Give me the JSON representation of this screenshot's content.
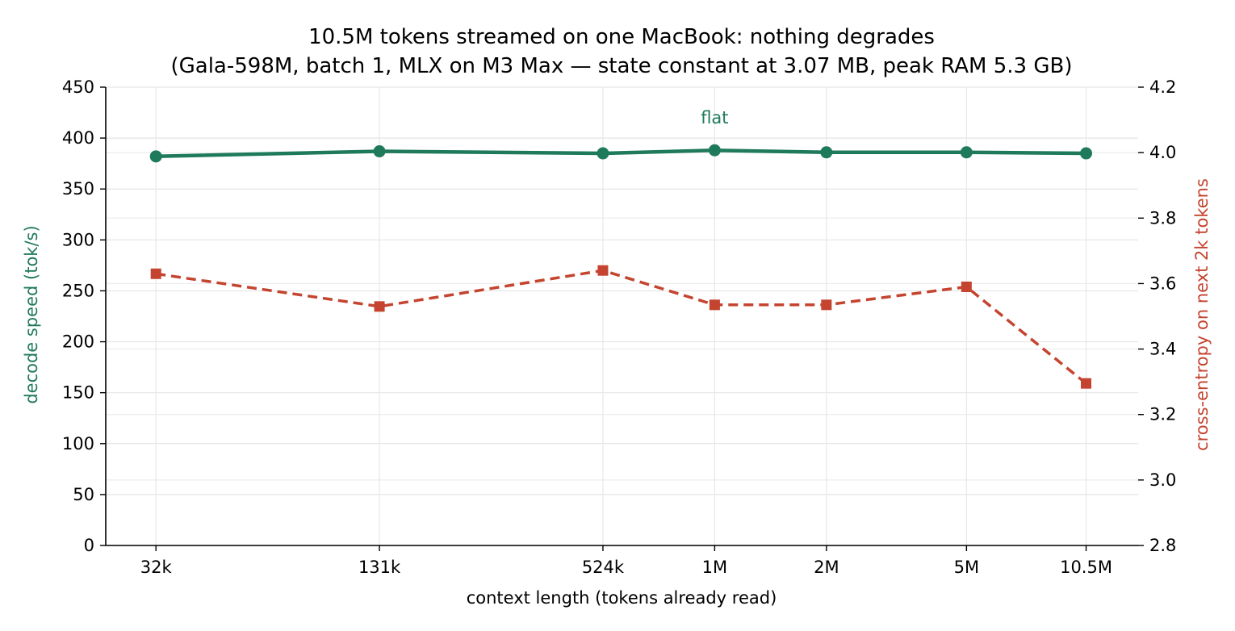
{
  "chart_data": {
    "type": "line",
    "title": "10.5M tokens streamed on one MacBook: nothing degrades",
    "subtitle": "(Gala-598M, batch 1, MLX on M3 Max — state constant at 3.07 MB, peak RAM 5.3 GB)",
    "xlabel": "context length (tokens already read)",
    "ylabel_left": "decode speed (tok/s)",
    "ylabel_right": "cross-entropy on next 2k tokens",
    "x_scale": "log",
    "categories": [
      "32k",
      "131k",
      "524k",
      "1M",
      "2M",
      "5M",
      "10.5M"
    ],
    "x": [
      32768,
      131072,
      524288,
      1048576,
      2097152,
      5000000,
      10500000
    ],
    "ylim_left": [
      0,
      450
    ],
    "yticks_left": [
      0,
      50,
      100,
      150,
      200,
      250,
      300,
      350,
      400,
      450
    ],
    "ylim_right": [
      2.8,
      4.2
    ],
    "yticks_right": [
      "2.8",
      "3.0",
      "3.2",
      "3.4",
      "3.6",
      "3.8",
      "4.0",
      "4.2"
    ],
    "grid": true,
    "series": [
      {
        "name": "",
        "axis": "left",
        "color": "#1f7a5c",
        "style": "solid",
        "marker": "circle",
        "values": [
          382,
          387,
          385,
          388,
          386,
          386,
          385
        ]
      },
      {
        "name": "",
        "axis": "right",
        "color": "#c4442f",
        "style": "dashed",
        "marker": "square",
        "values": [
          3.63,
          3.53,
          3.64,
          3.535,
          3.535,
          3.59,
          3.295
        ]
      }
    ],
    "annotations": [
      {
        "text": "flat",
        "x": 1048576,
        "y": 419,
        "axis": "left",
        "color": "#1f7a5c"
      }
    ]
  }
}
